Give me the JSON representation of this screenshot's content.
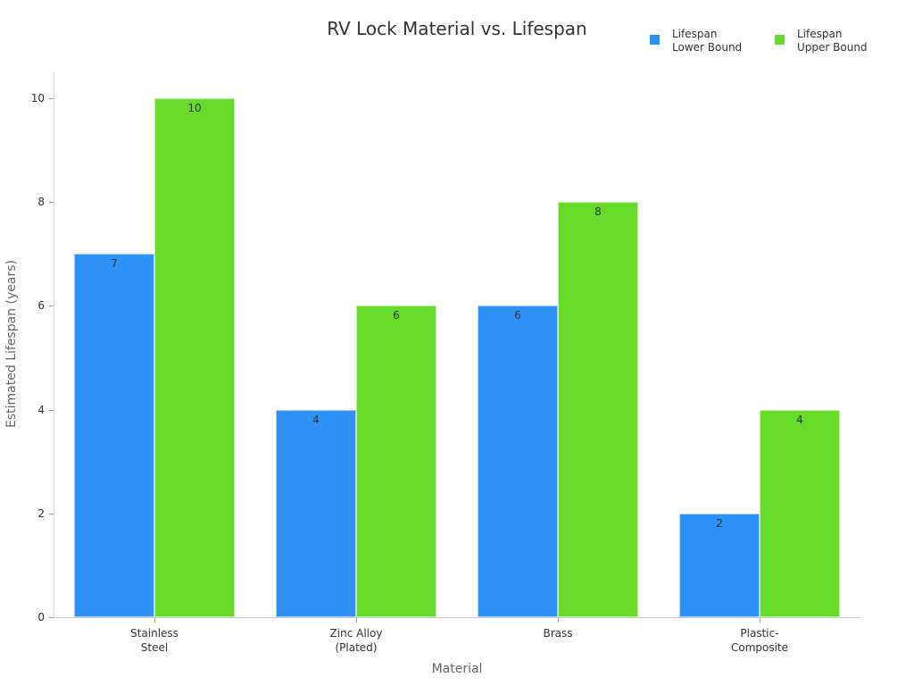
{
  "chart_data": {
    "type": "bar",
    "title": "RV Lock Material vs. Lifespan",
    "xlabel": "Material",
    "ylabel": "Estimated Lifespan (years)",
    "categories": [
      "Stainless Steel",
      "Zinc Alloy (Plated)",
      "Brass",
      "Plastic-Composite"
    ],
    "category_lines": [
      [
        "Stainless",
        "Steel"
      ],
      [
        "Zinc Alloy",
        "(Plated)"
      ],
      [
        "Brass"
      ],
      [
        "Plastic-",
        "Composite"
      ]
    ],
    "series": [
      {
        "name": "Lifespan Lower Bound",
        "color": "#2e91f5",
        "values": [
          7,
          4,
          6,
          2
        ]
      },
      {
        "name": "Lifespan Upper Bound",
        "color": "#66db29",
        "values": [
          10,
          6,
          8,
          4
        ]
      }
    ],
    "ylim": [
      0,
      10.5
    ],
    "yticks": [
      0,
      2,
      4,
      6,
      8,
      10
    ],
    "grid": false,
    "legend_position": "top-right",
    "data_labels": true
  },
  "legend": {
    "items": [
      {
        "line1": "Lifespan",
        "line2": "Lower Bound",
        "color": "#2e91f5"
      },
      {
        "line1": "Lifespan",
        "line2": "Upper Bound",
        "color": "#66db29"
      }
    ]
  }
}
